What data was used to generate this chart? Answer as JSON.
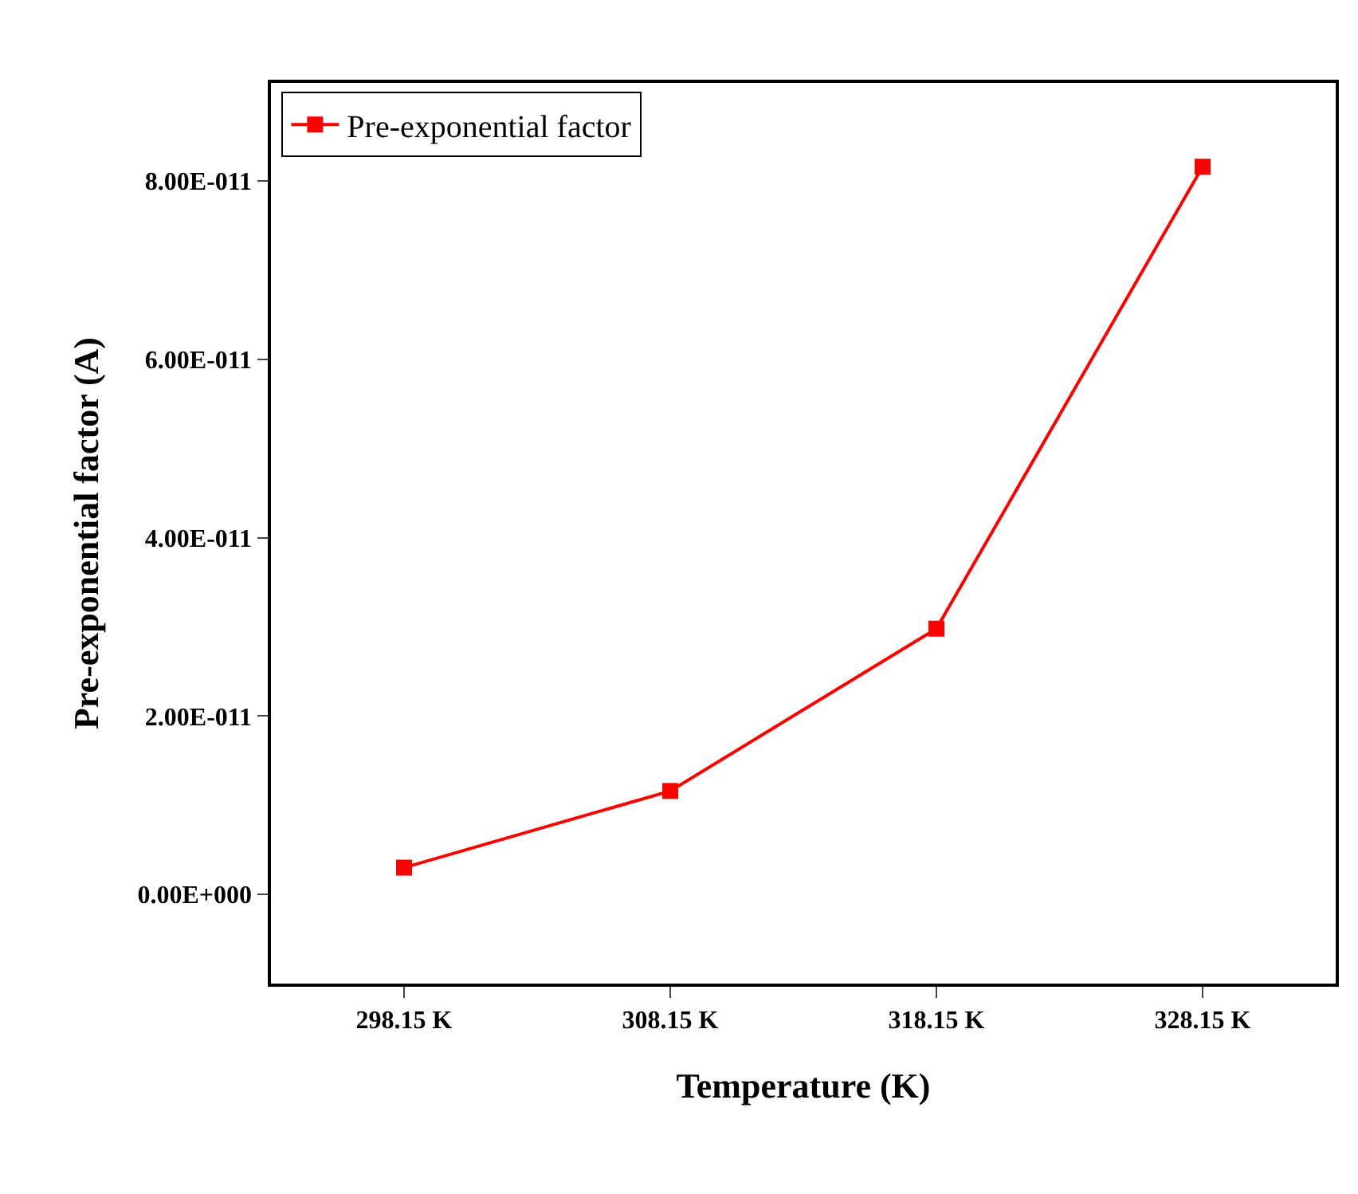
{
  "chart_data": {
    "type": "line",
    "xlabel": "Temperature (K)",
    "ylabel": "Pre-exponential factor (A)",
    "categories": [
      "298.15 K",
      "308.15 K",
      "318.15 K",
      "328.15 K"
    ],
    "series": [
      {
        "name": "Pre-exponential factor",
        "color": "#ff0000",
        "values": [
          3e-12,
          1.16e-11,
          2.98e-11,
          8.16e-11
        ]
      }
    ],
    "ylim": [
      -1e-11,
      9.1e-11
    ],
    "yticks": [
      {
        "value": 0,
        "label": "0.00E+000"
      },
      {
        "value": 2e-11,
        "label": "2.00E-011"
      },
      {
        "value": 4e-11,
        "label": "4.00E-011"
      },
      {
        "value": 6e-11,
        "label": "6.00E-011"
      },
      {
        "value": 8e-11,
        "label": "8.00E-011"
      }
    ],
    "grid": false,
    "legend": "top left",
    "marker": "square",
    "line_style": "solid"
  }
}
